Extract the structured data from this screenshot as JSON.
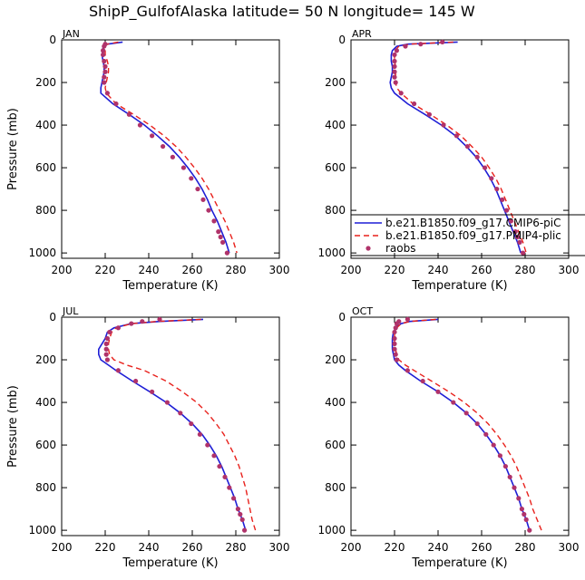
{
  "title": "ShipP_GulfofAlaska   latitude= 50 N longitude= 145 W",
  "colors": {
    "model1": "#1f1fd6",
    "model2": "#e8211c",
    "obs": "#b0336a"
  },
  "legend": {
    "items": [
      {
        "label": "b.e21.B1850.f09_g17.CMIP6-piC",
        "style": "solid",
        "color": "#1f1fd6"
      },
      {
        "label": "b.e21.B1850.f09_g17.PMIP4-plic",
        "style": "dashed",
        "color": "#e8211c"
      },
      {
        "label": "raobs",
        "style": "dot",
        "color": "#b0336a"
      }
    ]
  },
  "chart_data": [
    {
      "type": "line",
      "panel": "JAN",
      "xlabel": "Temperature (K)",
      "ylabel": "Pressure (mb)",
      "xlim": [
        200,
        300
      ],
      "ylim": [
        1025,
        0
      ],
      "y_reversed": true,
      "xticks": [
        200,
        220,
        240,
        260,
        280,
        300
      ],
      "yticks": [
        0,
        200,
        400,
        600,
        800,
        1000
      ],
      "pressure": [
        10,
        20,
        30,
        50,
        70,
        100,
        125,
        150,
        175,
        200,
        225,
        250,
        300,
        350,
        400,
        450,
        500,
        550,
        600,
        650,
        700,
        750,
        800,
        850,
        900,
        925,
        950,
        1000
      ],
      "series": [
        {
          "name": "b.e21.B1850.f09_g17.CMIP6-piC",
          "values": [
            228,
            221,
            219,
            219,
            218.5,
            219,
            219.5,
            219.5,
            219,
            218.5,
            218,
            218,
            223.5,
            231,
            238,
            244,
            249.5,
            254,
            258,
            261.5,
            264.5,
            267,
            269,
            271.5,
            273.5,
            274.5,
            275.5,
            277
          ]
        },
        {
          "name": "b.e21.B1850.f09_g17.PMIP4-plic",
          "values": [
            226,
            221,
            220,
            220,
            220,
            221,
            221.5,
            221.5,
            221,
            220.5,
            220,
            220.5,
            225,
            233,
            240.5,
            247,
            252.5,
            257,
            261,
            264.5,
            267.5,
            270,
            272.5,
            275,
            277,
            278,
            279,
            280.5
          ]
        }
      ],
      "raobs": {
        "pressure": [
          20,
          30,
          50,
          70,
          100,
          125,
          150,
          175,
          200,
          250,
          300,
          350,
          400,
          450,
          500,
          550,
          600,
          650,
          700,
          750,
          800,
          850,
          900,
          925,
          950,
          1000
        ],
        "values": [
          220,
          219.5,
          219,
          219,
          219.5,
          220,
          220,
          219.5,
          219.5,
          221,
          225,
          231,
          236,
          241.5,
          246.5,
          251,
          256,
          259.5,
          262.5,
          265,
          267.5,
          270,
          272,
          273,
          274,
          276
        ]
      }
    },
    {
      "type": "line",
      "panel": "APR",
      "xlabel": "Temperature (K)",
      "ylabel": "Pressure (mb)",
      "xlim": [
        200,
        300
      ],
      "ylim": [
        1025,
        0
      ],
      "y_reversed": true,
      "xticks": [
        200,
        220,
        240,
        260,
        280,
        300
      ],
      "yticks": [
        0,
        200,
        400,
        600,
        800,
        1000
      ],
      "pressure": [
        10,
        20,
        30,
        50,
        70,
        100,
        125,
        150,
        175,
        200,
        225,
        250,
        300,
        350,
        400,
        450,
        500,
        550,
        600,
        650,
        700,
        750,
        800,
        850,
        900,
        925,
        950,
        1000
      ],
      "series": [
        {
          "name": "b.e21.B1850.f09_g17.CMIP6-piC",
          "values": [
            249,
            226,
            221,
            219,
            218.5,
            218.5,
            219,
            219,
            218.5,
            218,
            218.5,
            220,
            226,
            234,
            241.5,
            248,
            253,
            257.5,
            261,
            264,
            266.5,
            268.5,
            270.5,
            272.5,
            274.5,
            275.5,
            276.5,
            278
          ]
        },
        {
          "name": "b.e21.B1850.f09_g17.PMIP4-plic",
          "values": [
            247,
            227,
            222,
            220,
            220,
            220,
            220.5,
            220.5,
            220.5,
            220.5,
            221,
            223,
            228.5,
            236.5,
            244,
            250.5,
            255.5,
            260,
            263.5,
            266.5,
            269,
            271,
            273,
            275,
            277,
            278,
            279,
            280.5
          ]
        }
      ],
      "raobs": {
        "pressure": [
          10,
          20,
          30,
          50,
          70,
          100,
          125,
          150,
          175,
          200,
          250,
          300,
          350,
          400,
          450,
          500,
          550,
          600,
          650,
          700,
          750,
          800,
          850,
          900,
          925,
          950,
          1000
        ],
        "values": [
          242,
          232,
          225,
          221,
          220,
          220,
          220,
          220,
          220,
          220.5,
          223,
          229,
          236,
          242.5,
          248.5,
          253.5,
          258,
          261.5,
          264.5,
          267,
          269.5,
          271.5,
          273.5,
          275.5,
          276.5,
          277.5,
          279
        ]
      }
    },
    {
      "type": "line",
      "panel": "JUL",
      "xlabel": "Temperature (K)",
      "ylabel": "Pressure (mb)",
      "xlim": [
        200,
        300
      ],
      "ylim": [
        1025,
        0
      ],
      "y_reversed": true,
      "xticks": [
        200,
        220,
        240,
        260,
        280,
        300
      ],
      "yticks": [
        0,
        200,
        400,
        600,
        800,
        1000
      ],
      "pressure": [
        10,
        20,
        30,
        50,
        70,
        100,
        125,
        150,
        175,
        200,
        225,
        250,
        300,
        350,
        400,
        450,
        500,
        550,
        600,
        650,
        700,
        750,
        800,
        850,
        900,
        925,
        950,
        1000
      ],
      "series": [
        {
          "name": "b.e21.B1850.f09_g17.CMIP6-piC",
          "values": [
            265,
            245,
            232,
            224,
            221,
            220,
            218.5,
            217,
            217,
            218,
            221.5,
            225,
            232.5,
            240.5,
            248,
            254.5,
            260,
            264.5,
            268,
            271,
            273.5,
            275.5,
            277.5,
            279.5,
            281,
            282,
            283,
            284.5
          ]
        },
        {
          "name": "b.e21.B1850.f09_g17.PMIP4-plic",
          "values": [
            264,
            244,
            232,
            225,
            223,
            222,
            221.5,
            221.5,
            222,
            224,
            230,
            238,
            248,
            255.5,
            262,
            267,
            271,
            274.5,
            277,
            279.5,
            281.5,
            283,
            284.5,
            285.5,
            286.5,
            287,
            287.5,
            289
          ]
        }
      ],
      "raobs": {
        "pressure": [
          10,
          20,
          30,
          50,
          70,
          100,
          125,
          150,
          175,
          200,
          250,
          300,
          350,
          400,
          450,
          500,
          550,
          600,
          650,
          700,
          750,
          800,
          850,
          900,
          925,
          950,
          1000
        ],
        "values": [
          245,
          237,
          232,
          226,
          222,
          221,
          220.5,
          220.5,
          220.5,
          221,
          226,
          234,
          241.5,
          248.5,
          254.5,
          259.5,
          263.5,
          267,
          270,
          272.5,
          275,
          277,
          279,
          281,
          282,
          283,
          284
        ]
      }
    },
    {
      "type": "line",
      "panel": "OCT",
      "xlabel": "Temperature (K)",
      "ylabel": "Pressure (mb)",
      "xlim": [
        200,
        300
      ],
      "ylim": [
        1025,
        0
      ],
      "y_reversed": true,
      "xticks": [
        200,
        220,
        240,
        260,
        280,
        300
      ],
      "yticks": [
        0,
        200,
        400,
        600,
        800,
        1000
      ],
      "pressure": [
        10,
        20,
        30,
        50,
        70,
        100,
        125,
        150,
        175,
        200,
        225,
        250,
        300,
        350,
        400,
        450,
        500,
        550,
        600,
        650,
        700,
        750,
        800,
        850,
        900,
        925,
        950,
        1000
      ],
      "series": [
        {
          "name": "b.e21.B1850.f09_g17.CMIP6-piC",
          "values": [
            240,
            227,
            223,
            220.5,
            219.5,
            219,
            219,
            219,
            219.5,
            220,
            222,
            225,
            232,
            240,
            247,
            253,
            258,
            262,
            265.5,
            268.5,
            271,
            273,
            275,
            277,
            278.5,
            279.5,
            280.5,
            282
          ]
        },
        {
          "name": "b.e21.B1850.f09_g17.PMIP4-plic",
          "values": [
            239,
            227,
            223,
            221,
            220,
            220,
            220,
            220.5,
            221,
            222,
            225,
            229,
            237,
            245,
            252,
            258,
            263,
            267,
            270.5,
            273.5,
            276,
            278,
            280,
            282,
            283.5,
            284.5,
            285.5,
            287.5
          ]
        }
      ],
      "raobs": {
        "pressure": [
          10,
          20,
          30,
          50,
          70,
          100,
          125,
          150,
          175,
          200,
          250,
          300,
          350,
          400,
          450,
          500,
          550,
          600,
          650,
          700,
          750,
          800,
          850,
          900,
          925,
          950,
          1000
        ],
        "values": [
          226,
          222,
          221,
          220.5,
          220,
          220,
          220,
          220,
          220.5,
          221,
          226,
          233,
          240,
          247,
          253,
          258,
          262,
          265.5,
          268.5,
          271,
          273,
          275,
          277,
          278.5,
          279.5,
          280.5,
          282
        ]
      }
    }
  ]
}
